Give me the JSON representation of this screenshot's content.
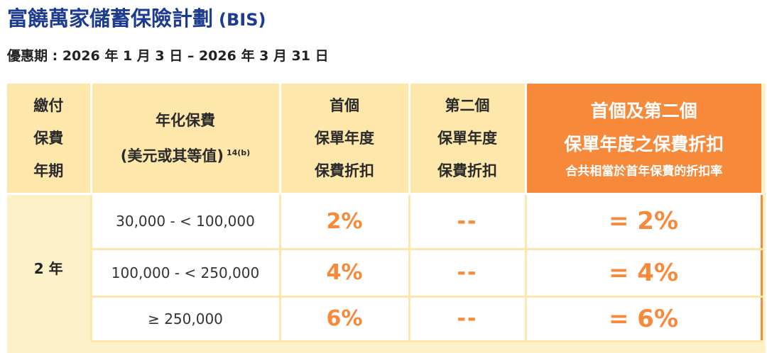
{
  "header": {
    "title": "富饒萬家儲蓄保險計劃",
    "title_suffix": "(BIS)",
    "period": "優惠期 : 2026 年 1 月 3 日 – 2026 年 3 月 31 日"
  },
  "table": {
    "headers": {
      "term": [
        "繳付",
        "保費",
        "年期"
      ],
      "premium": [
        "年化保費",
        "(美元或其等值)"
      ],
      "premium_superscript": "14(b)",
      "first_year": [
        "首個",
        "保單年度",
        "保費折扣"
      ],
      "second_year": [
        "第二個",
        "保單年度",
        "保費折扣"
      ],
      "combined": [
        "首個及第二個",
        "保單年度之保費折扣",
        "合共相當於首年保費的折扣率"
      ]
    },
    "term_value": "2 年",
    "rows": [
      {
        "range": "30,000 - < 100,000",
        "first": "2%",
        "second": "--",
        "combined": "= 2%"
      },
      {
        "range": "100,000 - < 250,000",
        "first": "4%",
        "second": "--",
        "combined": "= 4%"
      },
      {
        "range": "≥ 250,000",
        "first": "6%",
        "second": "--",
        "combined": "= 6%"
      }
    ]
  },
  "colors": {
    "title": "#1d3b8f",
    "accent": "#f7893b",
    "header_bg": "#fde7ab",
    "row_bg": "#fdf1c9"
  }
}
